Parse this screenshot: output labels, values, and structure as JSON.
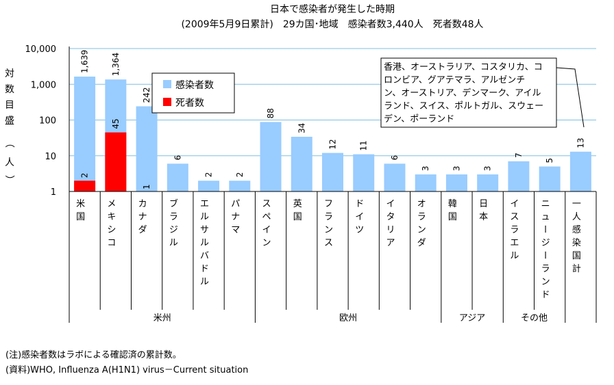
{
  "chart_data": {
    "type": "bar",
    "title_line1": "日本で感染者が発生した時期",
    "title_line2": "(2009年5月9日累計)　29カ国･地域　感染者数3,440人　死者数48人",
    "ylabel": "対数目盛（人）",
    "yscale": "log",
    "ylim": [
      1,
      10000
    ],
    "yticks": [
      "1",
      "10",
      "100",
      "1,000",
      "10,000"
    ],
    "grid": true,
    "legend_position": "upper-middle",
    "categories": [
      "米国",
      "メキシコ",
      "カナダ",
      "ブラジル",
      "エルサルバドル",
      "パナマ",
      "スペイン",
      "英国",
      "フランス",
      "ドイツ",
      "イタリア",
      "オランダ",
      "韓国",
      "日本",
      "イスラエル",
      "ニュージーランド",
      "一人感染国計"
    ],
    "groups": [
      {
        "name": "米州",
        "count": 6
      },
      {
        "name": "欧州",
        "count": 6
      },
      {
        "name": "アジア",
        "count": 2
      },
      {
        "name": "その他",
        "count": 2
      },
      {
        "name": "",
        "count": 1
      }
    ],
    "series": [
      {
        "name": "感染者数",
        "color": "#99ccff",
        "values": [
          1639,
          1364,
          242,
          6,
          2,
          2,
          88,
          34,
          12,
          11,
          6,
          3,
          3,
          3,
          7,
          5,
          13
        ],
        "labels": [
          "1,639",
          "1,364",
          "242",
          "6",
          "2",
          "2",
          "88",
          "34",
          "12",
          "11",
          "6",
          "3",
          "3",
          "3",
          "7",
          "5",
          "13"
        ]
      },
      {
        "name": "死者数",
        "color": "#ff0000",
        "values": [
          2,
          45,
          1,
          null,
          null,
          null,
          null,
          null,
          null,
          null,
          null,
          null,
          null,
          null,
          null,
          null,
          null
        ],
        "labels": [
          "2",
          "45",
          "1",
          "",
          "",
          "",
          "",
          "",
          "",
          "",
          "",
          "",
          "",
          "",
          "",
          "",
          ""
        ]
      }
    ],
    "annotation": "香港、オーストラリア、コスタリカ、コロンビア、グアテマラ、アルゼンチン、オーストリア、デンマーク、アイルランド、スイス、ポルトガル、スウェーデン、ポーランド",
    "annotation_lines": [
      "香港、オーストラリア、コスタリカ、コ",
      "ロンビア、グアテマラ、アルゼンチ",
      "ン、オーストリア、デンマーク、アイル",
      "ランド、スイス、ポルトガル、スウェー",
      "デン、ポーランド"
    ]
  },
  "notes": {
    "note": "(注)感染者数はラボによる確認済の累計数。",
    "source": "(資料)WHO, Influenza A(H1N1) virus－Current situation"
  }
}
